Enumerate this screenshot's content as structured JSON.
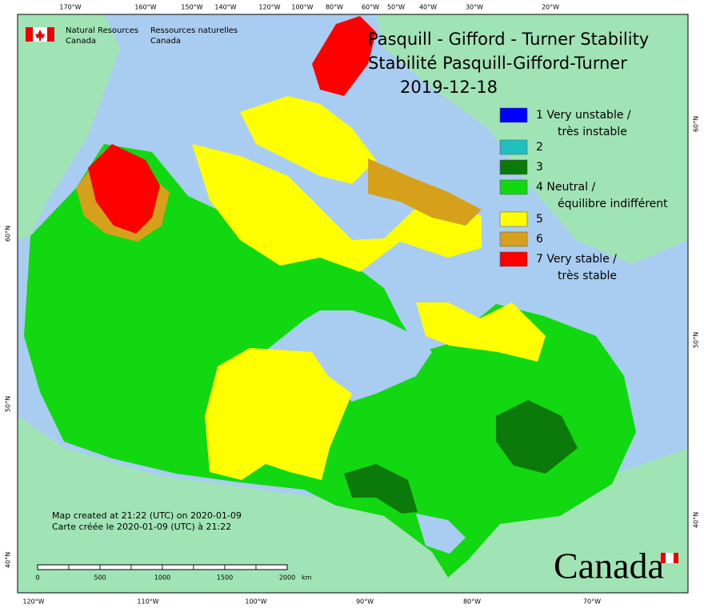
{
  "logo": {
    "en": [
      "Natural Resources",
      "Canada"
    ],
    "fr": [
      "Ressources naturelles",
      "Canada"
    ]
  },
  "title": {
    "lines": [
      "Pasquill - Gifford - Turner Stability",
      "Stabilité Pasquill-Gifford-Turner",
      "2019-12-18"
    ]
  },
  "legend": [
    {
      "label": "1 Very unstable /",
      "label2": "très instable"
    },
    {
      "label": "2"
    },
    {
      "label": "3"
    },
    {
      "label": "4 Neutral /",
      "label2": "équilibre indifférent"
    },
    {
      "label": "5"
    },
    {
      "label": "6"
    },
    {
      "label": "7 Very stable /",
      "label2": "très stable"
    }
  ],
  "graticule": {
    "top": [
      "170°W",
      "160°W",
      "150°W",
      "140°W",
      "120°W",
      "100°W",
      "80°W",
      "60°W",
      "50°W",
      "40°W",
      "30°W",
      "20°W"
    ],
    "bottom": [
      "120°W",
      "110°W",
      "100°W",
      "90°W",
      "80°W",
      "70°W"
    ],
    "left": [
      "60°N",
      "50°N",
      "40°N"
    ],
    "right": [
      "60°N",
      "50°N",
      "40°N"
    ]
  },
  "footer": [
    "Map created at 21:22 (UTC) on 2020-01-09",
    "Carte créée le 2020-01-09 (UTC) à 21:22"
  ],
  "scale_bar": {
    "ticks": [
      "0",
      "500",
      "1000",
      "1500",
      "2000"
    ],
    "unit": "km"
  },
  "wordmark": "Canada"
}
